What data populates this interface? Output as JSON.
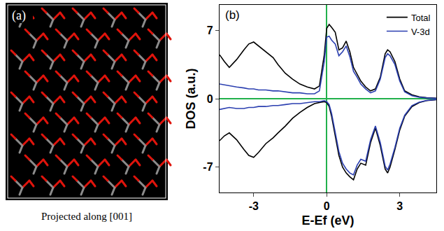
{
  "panel_a": {
    "label": "(a)",
    "caption": "Projected along [001]"
  },
  "chart_data": {
    "type": "line",
    "annotations": [
      "(b)"
    ],
    "x_label": "E-Ef (eV)",
    "y_label": "DOS (a.u.)",
    "x": [
      -4.4,
      -4.2,
      -4.0,
      -3.7,
      -3.4,
      -3.2,
      -3.0,
      -2.8,
      -2.5,
      -2.2,
      -2.0,
      -1.7,
      -1.4,
      -1.1,
      -0.8,
      -0.5,
      -0.3,
      -0.1,
      0.0,
      0.1,
      0.2,
      0.35,
      0.5,
      0.65,
      0.8,
      0.95,
      1.1,
      1.25,
      1.4,
      1.6,
      1.8,
      2.0,
      2.2,
      2.4,
      2.5,
      2.6,
      2.8,
      3.0,
      3.2,
      3.5,
      3.8,
      4.1,
      4.5
    ],
    "series": [
      {
        "name": "Total",
        "color": "#000000",
        "values": [
          4.5,
          3.8,
          3.2,
          4.0,
          5.0,
          5.6,
          5.8,
          5.4,
          4.8,
          4.2,
          3.5,
          2.6,
          2.0,
          1.5,
          1.2,
          1.0,
          1.3,
          4.5,
          7.2,
          7.6,
          7.3,
          6.8,
          5.0,
          5.2,
          5.9,
          4.8,
          3.2,
          2.5,
          1.8,
          1.2,
          0.8,
          1.0,
          2.2,
          4.6,
          5.0,
          4.8,
          3.8,
          2.0,
          0.8,
          0.4,
          0.2,
          0.1,
          0.05
        ]
      },
      {
        "name": "V-3d",
        "color": "#2b3fb0",
        "values": [
          1.5,
          1.4,
          1.3,
          1.2,
          1.1,
          1.0,
          1.0,
          0.9,
          0.9,
          0.8,
          0.8,
          0.7,
          0.6,
          0.6,
          0.5,
          0.5,
          0.8,
          3.8,
          6.3,
          6.4,
          6.0,
          5.6,
          4.4,
          4.8,
          5.4,
          4.3,
          2.8,
          2.2,
          1.5,
          1.0,
          0.6,
          0.8,
          2.0,
          4.2,
          4.6,
          4.4,
          3.5,
          1.8,
          0.7,
          0.3,
          0.15,
          0.08,
          0.03
        ]
      },
      {
        "name": "Total",
        "color": "#000000",
        "values": [
          -4.3,
          -3.8,
          -3.5,
          -4.2,
          -5.2,
          -5.8,
          -6.0,
          -5.5,
          -4.6,
          -4.0,
          -3.5,
          -2.8,
          -2.0,
          -1.4,
          -0.9,
          -0.5,
          -0.4,
          -0.3,
          -0.4,
          -0.8,
          -1.8,
          -3.8,
          -5.8,
          -7.0,
          -7.6,
          -8.0,
          -8.3,
          -7.2,
          -6.6,
          -6.8,
          -4.5,
          -3.0,
          -4.8,
          -7.2,
          -7.6,
          -7.0,
          -5.2,
          -3.2,
          -1.8,
          -0.8,
          -0.4,
          -0.2,
          -0.1
        ]
      },
      {
        "name": "V-3d",
        "color": "#2b3fb0",
        "values": [
          -1.1,
          -1.0,
          -0.9,
          -1.0,
          -1.0,
          -0.9,
          -0.9,
          -0.8,
          -0.8,
          -0.7,
          -0.7,
          -0.6,
          -0.5,
          -0.5,
          -0.4,
          -0.3,
          -0.3,
          -0.2,
          -0.3,
          -0.6,
          -1.5,
          -3.4,
          -5.4,
          -6.6,
          -7.2,
          -7.6,
          -7.8,
          -6.8,
          -6.2,
          -6.4,
          -4.2,
          -2.8,
          -4.5,
          -6.9,
          -7.3,
          -6.7,
          -5.0,
          -3.0,
          -1.7,
          -0.7,
          -0.35,
          -0.18,
          -0.08
        ]
      }
    ],
    "xlim": [
      -4.4,
      4.5
    ],
    "ylim": [
      -9.6,
      9.6
    ],
    "xticks": [
      -3,
      0,
      3
    ],
    "yticks": [
      -7,
      0,
      7
    ],
    "grid": false,
    "legend": "top right"
  }
}
